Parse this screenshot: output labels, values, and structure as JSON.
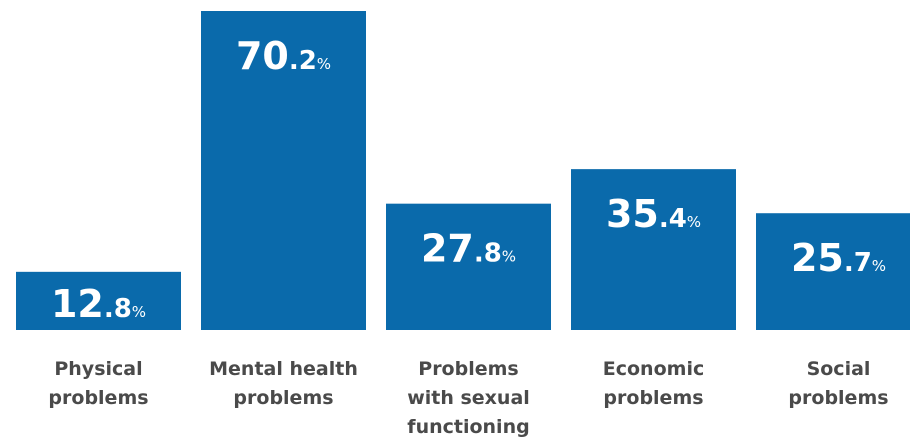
{
  "chart_data": {
    "type": "bar",
    "title": "",
    "xlabel": "",
    "ylabel": "",
    "ylim": [
      0,
      70.2
    ],
    "grid": false,
    "categories": [
      [
        "Physical",
        "problems"
      ],
      [
        "Mental health",
        "problems"
      ],
      [
        "Problems",
        "with sexual",
        "functioning"
      ],
      [
        "Economic",
        "problems"
      ],
      [
        "Social",
        "problems"
      ]
    ],
    "values": [
      12.8,
      70.2,
      27.8,
      35.4,
      25.7
    ],
    "value_labels": [
      {
        "main": "12.8",
        "unit": "%"
      },
      {
        "main": "70.2",
        "unit": "%"
      },
      {
        "main": "27.8",
        "unit": "%"
      },
      {
        "main": "35.4",
        "unit": "%"
      },
      {
        "main": "25.7",
        "unit": "%"
      }
    ],
    "bar_color": "#0a6aab"
  }
}
